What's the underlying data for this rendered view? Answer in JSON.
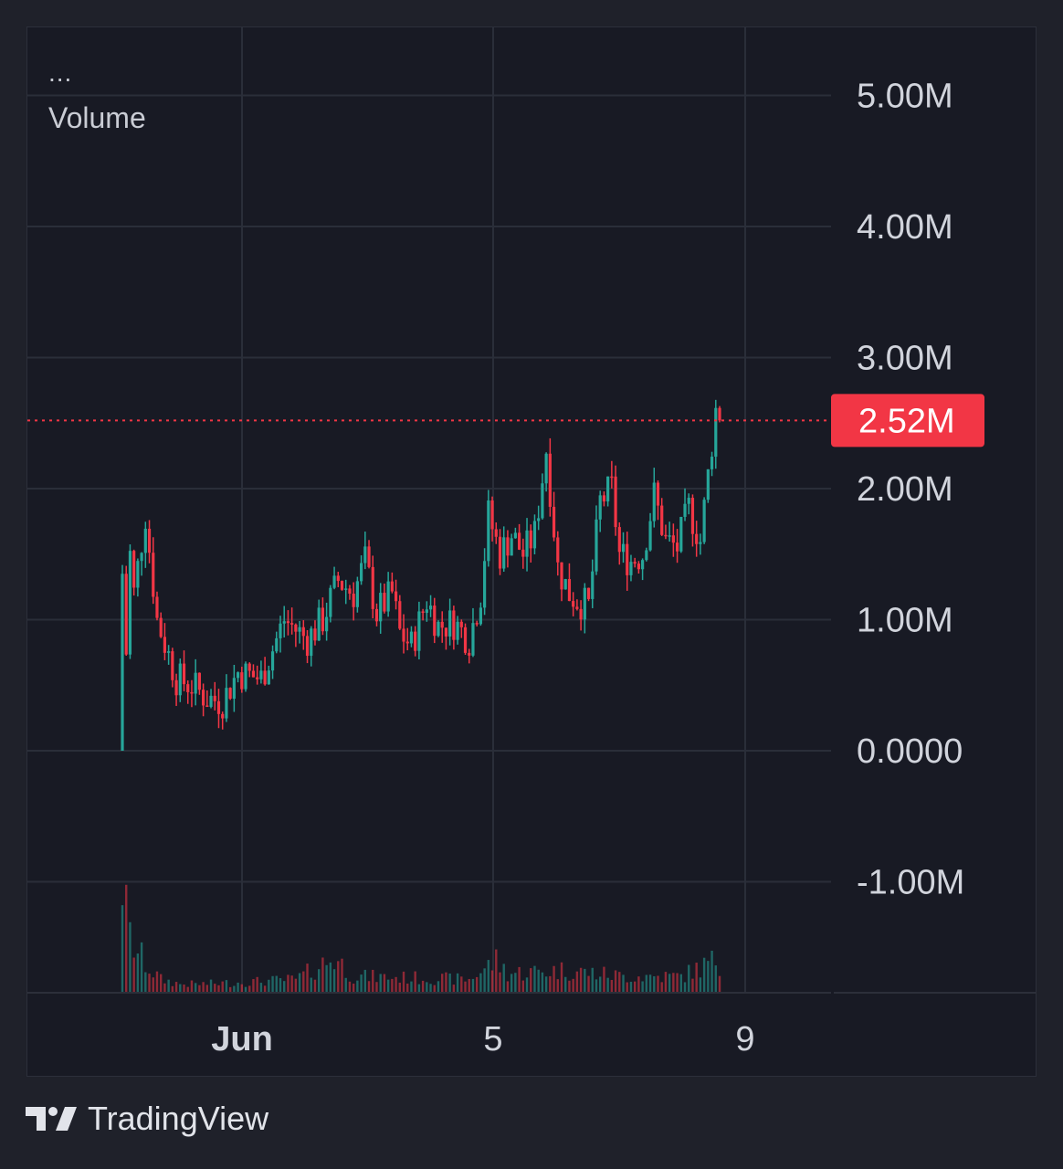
{
  "legend": {
    "more": "...",
    "indicator": "Volume"
  },
  "chart_data": {
    "type": "candlestick",
    "ylim": [
      -1.7,
      5.5
    ],
    "y_ticks": [
      {
        "value": 5,
        "label": "5.00M"
      },
      {
        "value": 4,
        "label": "4.00M"
      },
      {
        "value": 3,
        "label": "3.00M"
      },
      {
        "value": 2,
        "label": "2.00M"
      },
      {
        "value": 1,
        "label": "1.00M"
      },
      {
        "value": 0,
        "label": "0.0000"
      },
      {
        "value": -1,
        "label": "-1.00M"
      }
    ],
    "x_ticks": [
      {
        "label": "Jun",
        "bold": true
      },
      {
        "label": "5",
        "bold": false
      },
      {
        "label": "9",
        "bold": false
      }
    ],
    "current_value": {
      "value": 2.52,
      "label": "2.52M"
    },
    "colors": {
      "up": "#26a69a",
      "down": "#f23645",
      "grid": "#2a2e39",
      "axis_text": "#d1d4dc"
    },
    "keypoints": [
      [
        0,
        0
      ],
      [
        2,
        1.5
      ],
      [
        3,
        1.2
      ],
      [
        6,
        1.8
      ],
      [
        9,
        1.0
      ],
      [
        14,
        0.55
      ],
      [
        18,
        0.5
      ],
      [
        22,
        0.4
      ],
      [
        26,
        0.38
      ],
      [
        30,
        0.6
      ],
      [
        36,
        0.55
      ],
      [
        42,
        1.0
      ],
      [
        48,
        0.85
      ],
      [
        52,
        1.0
      ],
      [
        56,
        1.3
      ],
      [
        60,
        1.2
      ],
      [
        63,
        1.45
      ],
      [
        66,
        1.05
      ],
      [
        70,
        1.2
      ],
      [
        72,
        0.9
      ],
      [
        75,
        0.8
      ],
      [
        79,
        1.15
      ],
      [
        82,
        0.95
      ],
      [
        86,
        0.98
      ],
      [
        90,
        0.85
      ],
      [
        93,
        1.2
      ],
      [
        95,
        1.8
      ],
      [
        98,
        1.5
      ],
      [
        101,
        1.65
      ],
      [
        104,
        1.5
      ],
      [
        107,
        1.65
      ],
      [
        110,
        2.3
      ],
      [
        113,
        1.4
      ],
      [
        116,
        1.2
      ],
      [
        118,
        1.15
      ],
      [
        121,
        1.1
      ],
      [
        124,
        1.9
      ],
      [
        127,
        2.0
      ],
      [
        129,
        1.5
      ],
      [
        132,
        1.45
      ],
      [
        135,
        1.5
      ],
      [
        138,
        1.95
      ],
      [
        141,
        1.6
      ],
      [
        144,
        1.55
      ],
      [
        147,
        1.85
      ],
      [
        150,
        1.6
      ],
      [
        152,
        2.1
      ],
      [
        154,
        2.6
      ],
      [
        155,
        2.55
      ]
    ],
    "volume_keypoints": [
      [
        0,
        0.75
      ],
      [
        1,
        0.5
      ],
      [
        2,
        0.35
      ],
      [
        4,
        0.25
      ],
      [
        7,
        0.15
      ],
      [
        10,
        0.08
      ],
      [
        15,
        0.05
      ],
      [
        20,
        0.05
      ],
      [
        30,
        0.06
      ],
      [
        45,
        0.08
      ],
      [
        55,
        0.22
      ],
      [
        60,
        0.1
      ],
      [
        75,
        0.09
      ],
      [
        90,
        0.08
      ],
      [
        97,
        0.2
      ],
      [
        100,
        0.12
      ],
      [
        115,
        0.14
      ],
      [
        130,
        0.1
      ],
      [
        145,
        0.1
      ],
      [
        154,
        0.2
      ],
      [
        155,
        0.15
      ]
    ]
  },
  "brand": {
    "name": "TradingView"
  }
}
